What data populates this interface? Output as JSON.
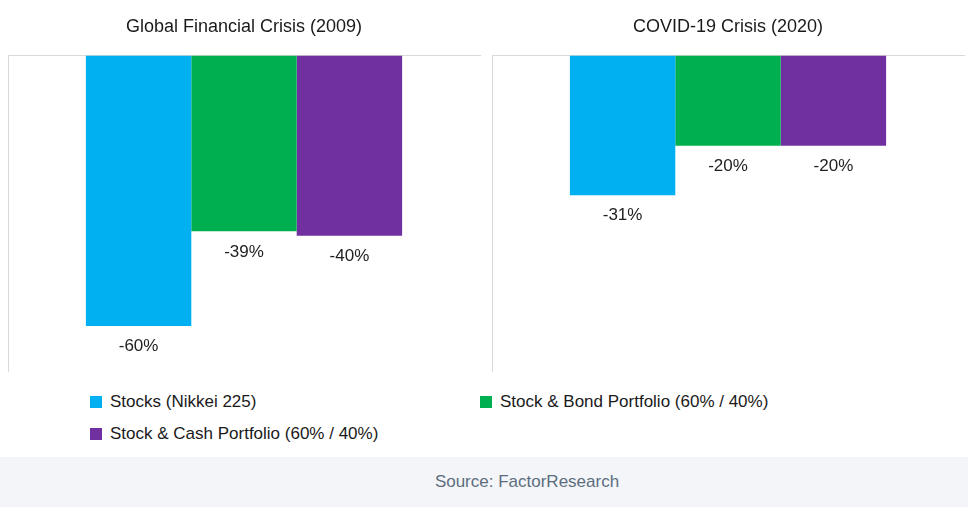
{
  "chart_data": [
    {
      "type": "bar",
      "title": "Global Financial Crisis (2009)",
      "categories": [
        null
      ],
      "series": [
        {
          "name": "Stocks (Nikkei 225)",
          "color": "#00b0f0",
          "values": [
            -60
          ],
          "value_labels": [
            "-60%"
          ]
        },
        {
          "name": "Stock & Bond Portfolio (60% / 40%)",
          "color": "#00b050",
          "values": [
            -39
          ],
          "value_labels": [
            "-39%"
          ]
        },
        {
          "name": "Stock & Cash Portfolio (60% / 40%)",
          "color": "#7030a0",
          "values": [
            -40
          ],
          "value_labels": [
            "-40%"
          ]
        }
      ],
      "ylim": [
        -70,
        0
      ],
      "grid": false,
      "tick_labels": false,
      "data_labels": true,
      "legend": "bottom"
    },
    {
      "type": "bar",
      "title": "COVID-19 Crisis (2020)",
      "categories": [
        null
      ],
      "series": [
        {
          "name": "Stocks (Nikkei 225)",
          "color": "#00b0f0",
          "values": [
            -31
          ],
          "value_labels": [
            "-31%"
          ]
        },
        {
          "name": "Stock & Bond Portfolio (60% / 40%)",
          "color": "#00b050",
          "values": [
            -20
          ],
          "value_labels": [
            "-20%"
          ]
        },
        {
          "name": "Stock & Cash Portfolio (60% / 40%)",
          "color": "#7030a0",
          "values": [
            -20
          ],
          "value_labels": [
            "-20%"
          ]
        }
      ],
      "ylim": [
        -70,
        0
      ],
      "grid": false,
      "tick_labels": false,
      "data_labels": true,
      "legend": "bottom"
    }
  ],
  "source": "Source: FactorResearch"
}
